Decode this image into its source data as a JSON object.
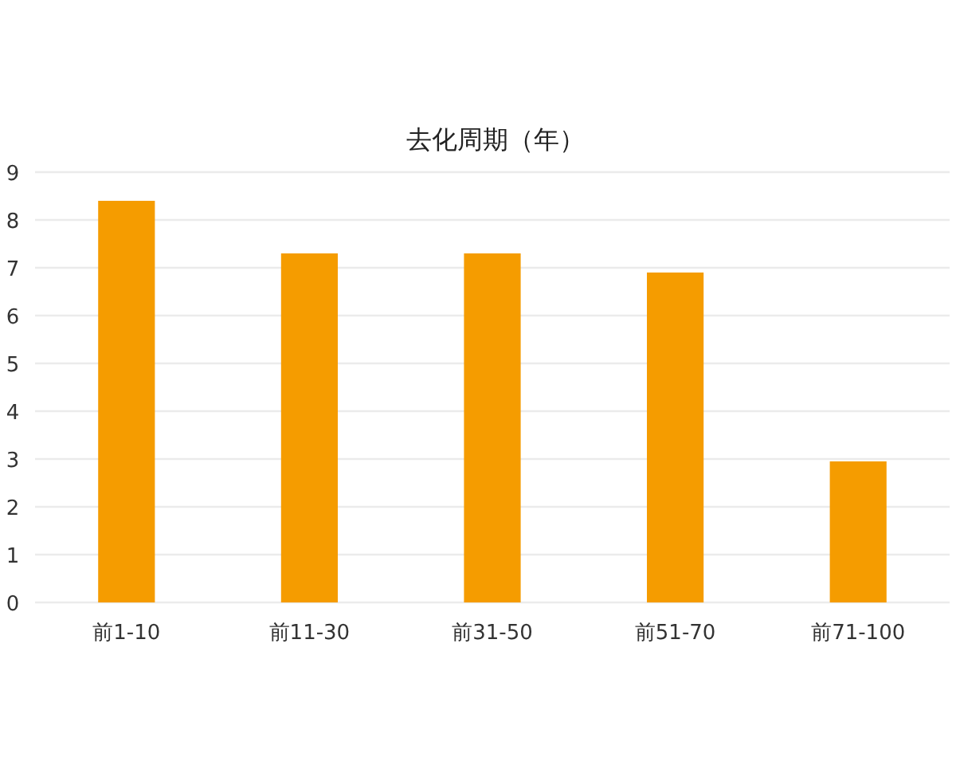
{
  "chart_data": {
    "type": "bar",
    "title": "去化周期（年）",
    "categories": [
      "前1-10",
      "前11-30",
      "前31-50",
      "前51-70",
      "前71-100"
    ],
    "values": [
      8.4,
      7.3,
      7.3,
      6.9,
      2.95
    ],
    "color": "#f59c00",
    "ylim": [
      0,
      9
    ],
    "yticks": [
      0,
      1,
      2,
      3,
      4,
      5,
      6,
      7,
      8,
      9
    ],
    "grid": "y"
  }
}
